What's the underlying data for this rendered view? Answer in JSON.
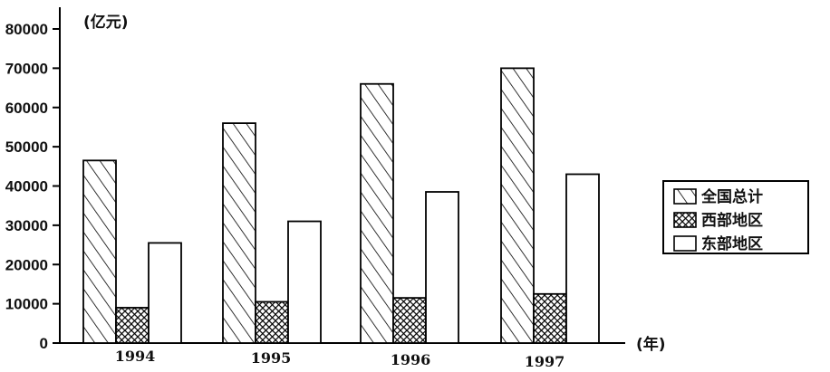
{
  "chart_data": {
    "type": "bar",
    "title": "",
    "ylabel": "(亿元)",
    "xlabel": "(年)",
    "ylim": [
      0,
      80000
    ],
    "yticks": [
      0,
      10000,
      20000,
      30000,
      40000,
      50000,
      60000,
      70000,
      80000
    ],
    "categories": [
      "1994",
      "1995",
      "1996",
      "1997"
    ],
    "series": [
      {
        "name": "全国总计",
        "values": [
          46500,
          56000,
          66000,
          70000
        ],
        "pattern": "diagonal-hatch"
      },
      {
        "name": "西部地区",
        "values": [
          9000,
          10500,
          11500,
          12500
        ],
        "pattern": "crosshatch"
      },
      {
        "name": "东部地区",
        "values": [
          25500,
          31000,
          38500,
          43000
        ],
        "pattern": "white"
      }
    ],
    "legend_position": "right",
    "grid": false
  }
}
